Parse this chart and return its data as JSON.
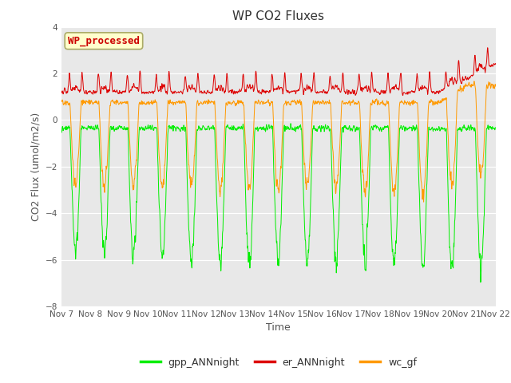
{
  "title": "WP CO2 Fluxes",
  "xlabel": "Time",
  "ylabel": "CO2 Flux (umol/m2/s)",
  "ylim": [
    -8,
    4
  ],
  "yticks": [
    -8,
    -6,
    -4,
    -2,
    0,
    2,
    4
  ],
  "n_days": 15,
  "n_points": 2160,
  "colors": {
    "gpp": "#00ee00",
    "er": "#dd0000",
    "wc": "#ff9900"
  },
  "legend_labels": [
    "gpp_ANNnight",
    "er_ANNnight",
    "wc_gf"
  ],
  "annotation_text": "WP_processed",
  "annotation_color": "#cc0000",
  "annotation_bg": "#ffffcc",
  "annotation_edge": "#aaaa66",
  "bg_color": "#e8e8e8",
  "fig_bg": "#ffffff",
  "linewidth": 0.7,
  "title_fontsize": 11,
  "tick_fontsize": 7.5,
  "axis_label_fontsize": 9
}
